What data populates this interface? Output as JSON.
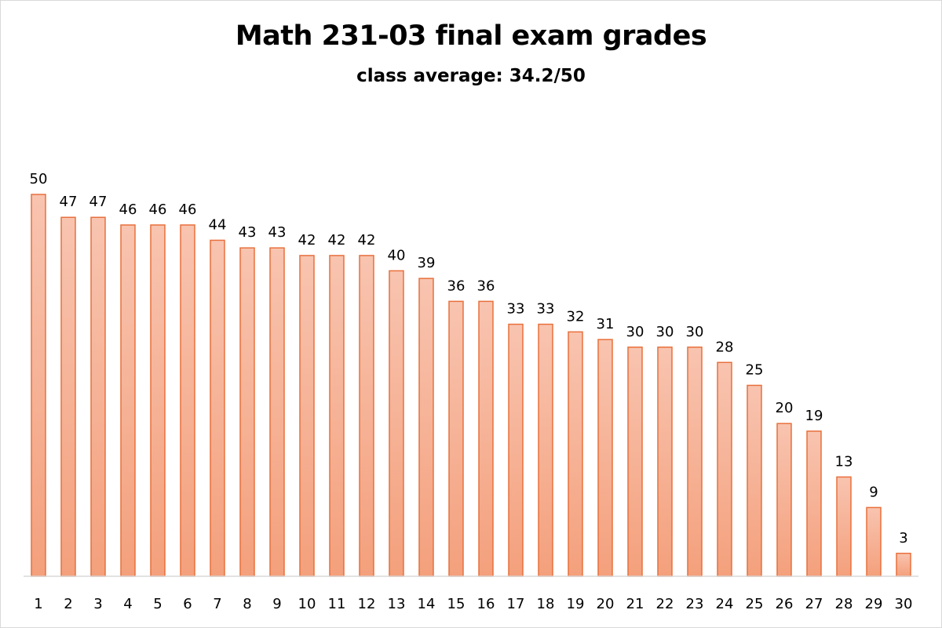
{
  "chart_data": {
    "type": "bar",
    "title": "Math 231-03 final exam grades",
    "subtitle": "class average: 34.2/50",
    "xlabel": "",
    "ylabel": "",
    "categories": [
      "1",
      "2",
      "3",
      "4",
      "5",
      "6",
      "7",
      "8",
      "9",
      "10",
      "11",
      "12",
      "13",
      "14",
      "15",
      "16",
      "17",
      "18",
      "19",
      "20",
      "21",
      "22",
      "23",
      "24",
      "25",
      "26",
      "27",
      "28",
      "29",
      "30"
    ],
    "values": [
      50,
      47,
      47,
      46,
      46,
      46,
      44,
      43,
      43,
      42,
      42,
      42,
      40,
      39,
      36,
      36,
      33,
      33,
      32,
      31,
      30,
      30,
      30,
      28,
      25,
      20,
      19,
      13,
      9,
      3
    ],
    "ylim": [
      0,
      50
    ],
    "grid": false,
    "legend": "none",
    "data_labels": true,
    "colors": {
      "bar_fill_top": "#f8c4b0",
      "bar_fill_bottom": "#f4a07c",
      "bar_stroke": "#e8703c",
      "axis": "#d9d9d9"
    }
  }
}
